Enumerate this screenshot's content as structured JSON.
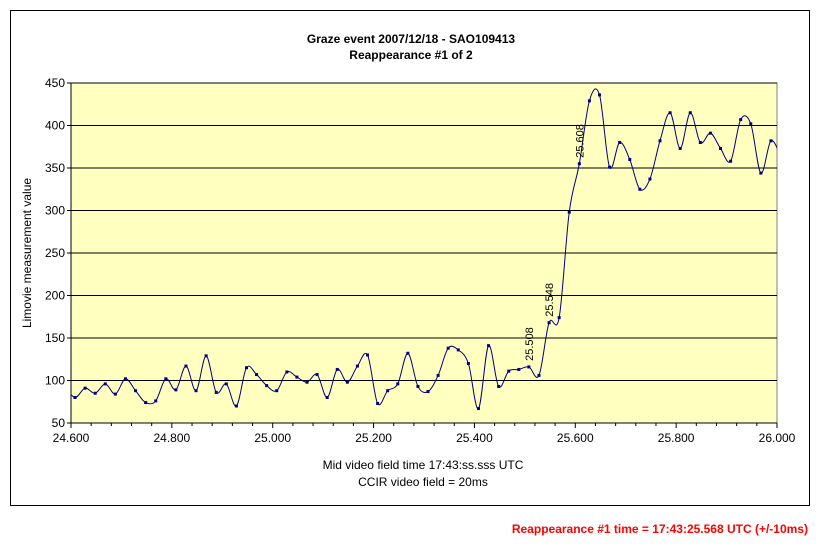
{
  "chart_data": {
    "type": "line",
    "title": "Graze event 2007/12/18 - SAO109413",
    "subtitle": "Reappearance #1 of 2",
    "xlabel": "Mid video field time 17:43:ss.sss UTC",
    "xlabel2": "CCIR video field = 20ms",
    "ylabel": "Limovie measurement value",
    "xlim": [
      24.6,
      26.0
    ],
    "ylim": [
      50,
      450
    ],
    "x_ticks": [
      "24.600",
      "24.800",
      "25.000",
      "25.200",
      "25.400",
      "25.600",
      "25.800",
      "26.000"
    ],
    "y_ticks": [
      "50",
      "100",
      "150",
      "200",
      "250",
      "300",
      "350",
      "400",
      "450"
    ],
    "grid": "horizontal",
    "legend": "none",
    "colors": {
      "plot_background": "#ffffc0",
      "line": "#000080",
      "frame": "#000000"
    },
    "series": [
      {
        "x": [
          24.588,
          24.608,
          24.628,
          24.648,
          24.668,
          24.688,
          24.708,
          24.728,
          24.748,
          24.768,
          24.788,
          24.808,
          24.828,
          24.848,
          24.868,
          24.888,
          24.908,
          24.928,
          24.948,
          24.968,
          24.988,
          25.008,
          25.028,
          25.048,
          25.068,
          25.088,
          25.108,
          25.128,
          25.148,
          25.168,
          25.188,
          25.208,
          25.228,
          25.248,
          25.268,
          25.288,
          25.308,
          25.328,
          25.348,
          25.368,
          25.388,
          25.408,
          25.428,
          25.448,
          25.468,
          25.488,
          25.508,
          25.528,
          25.548,
          25.568,
          25.588,
          25.608,
          25.628,
          25.648,
          25.668,
          25.688,
          25.708,
          25.728,
          25.748,
          25.768,
          25.788,
          25.808,
          25.828,
          25.848,
          25.868,
          25.888,
          25.908,
          25.928,
          25.948,
          25.968,
          25.988,
          26.008
        ],
        "values": [
          93,
          80,
          91,
          85,
          96,
          84,
          102,
          88,
          74,
          76,
          102,
          89,
          117,
          88,
          129,
          86,
          96,
          70,
          115,
          107,
          94,
          88,
          110,
          104,
          98,
          107,
          80,
          113,
          98,
          117,
          130,
          73,
          88,
          96,
          132,
          93,
          87,
          106,
          138,
          136,
          120,
          67,
          141,
          93,
          111,
          113,
          116,
          106,
          168,
          174,
          298,
          355,
          429,
          436,
          351,
          380,
          360,
          325,
          337,
          382,
          415,
          373,
          415,
          380,
          391,
          373,
          358,
          407,
          402,
          344,
          382,
          363
        ]
      }
    ],
    "annotations": [
      {
        "text": "25.508",
        "x": 25.508,
        "y": 116
      },
      {
        "text": "25.548",
        "x": 25.548,
        "y": 168
      },
      {
        "text": "25.608",
        "x": 25.608,
        "y": 355
      }
    ]
  },
  "footer_note": "Reappearance #1 time = 17:43:25.568 UTC (+/-10ms)"
}
